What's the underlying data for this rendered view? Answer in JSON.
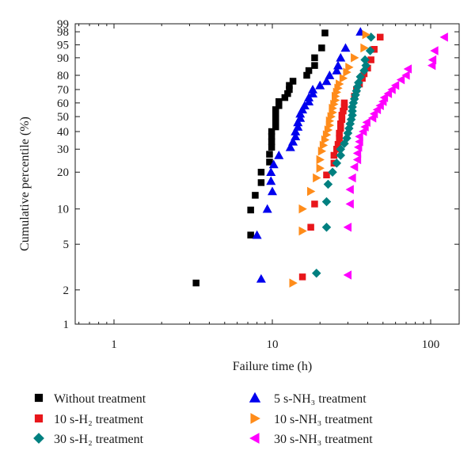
{
  "chart_data": {
    "type": "scatter",
    "title": "",
    "xlabel": "Failure time (h)",
    "ylabel": "Cumulative percentile (%)",
    "x_scale": "log",
    "y_scale": "weibull-probability",
    "xlim": [
      0.5,
      140
    ],
    "x_ticks": [
      {
        "value": 1,
        "label": "1"
      },
      {
        "value": 10,
        "label": "10"
      },
      {
        "value": 100,
        "label": "100"
      }
    ],
    "y_ticks": [
      {
        "value": 1,
        "label": "1"
      },
      {
        "value": 2,
        "label": "2"
      },
      {
        "value": 5,
        "label": "5"
      },
      {
        "value": 10,
        "label": "10"
      },
      {
        "value": 20,
        "label": "20"
      },
      {
        "value": 30,
        "label": "30"
      },
      {
        "value": 40,
        "label": "40"
      },
      {
        "value": 50,
        "label": "50"
      },
      {
        "value": 60,
        "label": "60"
      },
      {
        "value": 70,
        "label": "70"
      },
      {
        "value": 80,
        "label": "80"
      },
      {
        "value": 90,
        "label": "90"
      },
      {
        "value": 95,
        "label": "95"
      },
      {
        "value": 98,
        "label": "98"
      },
      {
        "value": 99,
        "label": "99"
      }
    ],
    "grid": false,
    "legend_position": "bottom",
    "series": [
      {
        "name": "Without treatment",
        "marker": "square",
        "color": "#000000",
        "points": [
          [
            3.3,
            2.3
          ],
          [
            7.3,
            6
          ],
          [
            7.3,
            9.8
          ],
          [
            7.8,
            13
          ],
          [
            8.5,
            16.5
          ],
          [
            8.5,
            20
          ],
          [
            9.6,
            24
          ],
          [
            9.6,
            27.5
          ],
          [
            9.9,
            31
          ],
          [
            9.9,
            34
          ],
          [
            9.9,
            37
          ],
          [
            9.9,
            40
          ],
          [
            10.5,
            43
          ],
          [
            10.5,
            46
          ],
          [
            10.5,
            49
          ],
          [
            10.5,
            52
          ],
          [
            10.5,
            55
          ],
          [
            11,
            58
          ],
          [
            11,
            61
          ],
          [
            12,
            64
          ],
          [
            12.5,
            67
          ],
          [
            12.8,
            70
          ],
          [
            12.8,
            73
          ],
          [
            13.5,
            76
          ],
          [
            16.5,
            80
          ],
          [
            17,
            83
          ],
          [
            18.5,
            86
          ],
          [
            18.5,
            90
          ],
          [
            20.5,
            94
          ],
          [
            21.5,
            97.8
          ]
        ]
      },
      {
        "name": "10 s-H₂ treatment",
        "marker": "square",
        "color": "#e8161b",
        "points": [
          [
            15.5,
            2.6
          ],
          [
            17.5,
            7
          ],
          [
            18.5,
            11
          ],
          [
            22,
            19
          ],
          [
            24.5,
            23.5
          ],
          [
            24.5,
            27
          ],
          [
            25.5,
            30
          ],
          [
            26,
            32.5
          ],
          [
            26.5,
            36
          ],
          [
            26.5,
            39
          ],
          [
            27,
            42
          ],
          [
            27,
            45
          ],
          [
            27.5,
            48
          ],
          [
            27.5,
            51
          ],
          [
            28,
            54
          ],
          [
            28.5,
            57
          ],
          [
            28.5,
            60
          ],
          [
            33,
            65
          ],
          [
            34,
            70
          ],
          [
            35.5,
            74
          ],
          [
            37,
            78
          ],
          [
            38,
            81
          ],
          [
            40,
            84.5
          ],
          [
            42,
            89
          ],
          [
            44,
            93.5
          ],
          [
            48,
            97
          ]
        ]
      },
      {
        "name": "30 s-H₂ treatment",
        "marker": "diamond",
        "color": "#008080",
        "points": [
          [
            19,
            2.8
          ],
          [
            22,
            7
          ],
          [
            22,
            11.5
          ],
          [
            22.5,
            16
          ],
          [
            24,
            20
          ],
          [
            25.5,
            23.5
          ],
          [
            27,
            27
          ],
          [
            27,
            30
          ],
          [
            28.5,
            33
          ],
          [
            29.5,
            36
          ],
          [
            30,
            39
          ],
          [
            30.5,
            42
          ],
          [
            31,
            45
          ],
          [
            31.5,
            48
          ],
          [
            32,
            51
          ],
          [
            32,
            54
          ],
          [
            32,
            57
          ],
          [
            32.5,
            60
          ],
          [
            33,
            63
          ],
          [
            33.5,
            66
          ],
          [
            34,
            69
          ],
          [
            34.5,
            72
          ],
          [
            35,
            75
          ],
          [
            36,
            79
          ],
          [
            38,
            83
          ],
          [
            39,
            86
          ],
          [
            38.5,
            89
          ],
          [
            41.5,
            93
          ],
          [
            42,
            97
          ]
        ]
      },
      {
        "name": "5 s-NH₃ treatment",
        "marker": "triangle-up",
        "color": "#0000ee",
        "points": [
          [
            8.5,
            2.5
          ],
          [
            8,
            6
          ],
          [
            9.3,
            10
          ],
          [
            10,
            14
          ],
          [
            9.8,
            17
          ],
          [
            9.8,
            20
          ],
          [
            10.2,
            23
          ],
          [
            11,
            27
          ],
          [
            13,
            31
          ],
          [
            13.5,
            34
          ],
          [
            14,
            37
          ],
          [
            14,
            40
          ],
          [
            14.5,
            43
          ],
          [
            14.5,
            46
          ],
          [
            15,
            49
          ],
          [
            15,
            52
          ],
          [
            15.5,
            55
          ],
          [
            16,
            58
          ],
          [
            17,
            61
          ],
          [
            17,
            64
          ],
          [
            18,
            67
          ],
          [
            18,
            70
          ],
          [
            20,
            73
          ],
          [
            22,
            76
          ],
          [
            23,
            80
          ],
          [
            25.5,
            83
          ],
          [
            26,
            86
          ],
          [
            27,
            90
          ],
          [
            29,
            94
          ],
          [
            36,
            98
          ]
        ]
      },
      {
        "name": "10 s-NH₃ treatment",
        "marker": "triangle-right",
        "color": "#ff8c1a",
        "points": [
          [
            13.5,
            2.3
          ],
          [
            15.5,
            6.5
          ],
          [
            15.5,
            10
          ],
          [
            17.5,
            14
          ],
          [
            19,
            18
          ],
          [
            20,
            21.5
          ],
          [
            20,
            25
          ],
          [
            20.5,
            29
          ],
          [
            21,
            32
          ],
          [
            21.5,
            35
          ],
          [
            22,
            38
          ],
          [
            22.5,
            41
          ],
          [
            23,
            44
          ],
          [
            23,
            47
          ],
          [
            23.5,
            50
          ],
          [
            24,
            53
          ],
          [
            24,
            56
          ],
          [
            24.5,
            59
          ],
          [
            25,
            62
          ],
          [
            25,
            65
          ],
          [
            25.5,
            68
          ],
          [
            26,
            71
          ],
          [
            26.5,
            74
          ],
          [
            28,
            78
          ],
          [
            29.5,
            82
          ],
          [
            30.5,
            85
          ],
          [
            33,
            90
          ],
          [
            38,
            94
          ],
          [
            39,
            97.5
          ]
        ]
      },
      {
        "name": "30 s-NH₃ treatment",
        "marker": "triangle-left",
        "color": "#ff00ff",
        "points": [
          [
            30,
            2.7
          ],
          [
            30,
            7
          ],
          [
            31,
            11
          ],
          [
            31,
            14.5
          ],
          [
            32,
            18
          ],
          [
            33,
            22
          ],
          [
            34.5,
            25
          ],
          [
            34.5,
            28
          ],
          [
            35,
            31
          ],
          [
            35.5,
            34
          ],
          [
            35.5,
            37
          ],
          [
            37.5,
            40
          ],
          [
            38.5,
            43
          ],
          [
            39.5,
            46
          ],
          [
            43,
            49
          ],
          [
            44,
            52
          ],
          [
            46,
            55
          ],
          [
            48,
            58
          ],
          [
            50,
            61
          ],
          [
            51,
            64
          ],
          [
            54,
            67
          ],
          [
            57,
            70
          ],
          [
            60,
            73
          ],
          [
            65,
            77
          ],
          [
            70,
            80
          ],
          [
            72,
            84
          ],
          [
            102,
            86
          ],
          [
            103,
            89
          ],
          [
            106,
            93
          ],
          [
            122,
            97
          ]
        ]
      }
    ]
  }
}
